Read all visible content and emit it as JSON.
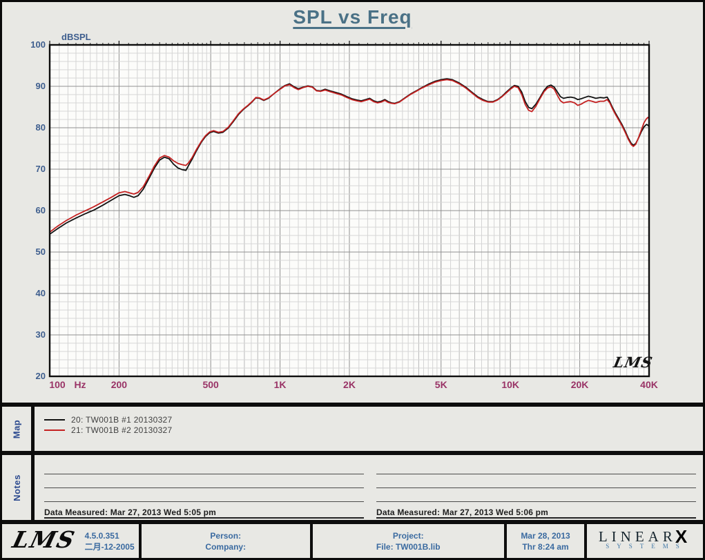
{
  "title": "SPL vs Freq",
  "chart_data": {
    "type": "line",
    "title": "SPL vs Freq",
    "ylabel": "dBSPL",
    "x_unit": "Hz",
    "xscale": "log",
    "xlim": [
      100,
      40000
    ],
    "ylim": [
      20,
      100
    ],
    "grid": true,
    "legend_position": "bottom-map-panel",
    "watermark": "LMS",
    "axis_colors": {
      "x": "#993366",
      "y": "#3e5e8e"
    },
    "yticks": [
      100,
      90,
      80,
      70,
      60,
      50,
      40,
      30,
      20
    ],
    "xticks": [
      {
        "f": 100,
        "label": "100"
      },
      {
        "f": 200,
        "label": "200"
      },
      {
        "f": 500,
        "label": "500"
      },
      {
        "f": 1000,
        "label": "1K"
      },
      {
        "f": 2000,
        "label": "2K"
      },
      {
        "f": 5000,
        "label": "5K"
      },
      {
        "f": 10000,
        "label": "10K"
      },
      {
        "f": 20000,
        "label": "20K"
      },
      {
        "f": 40000,
        "label": "40K"
      }
    ],
    "series": [
      {
        "name": "20: TW001B  #1  20130327",
        "color": "#111111",
        "points": [
          [
            100,
            54.3
          ],
          [
            108,
            55.6
          ],
          [
            118,
            57.0
          ],
          [
            130,
            58.2
          ],
          [
            142,
            59.2
          ],
          [
            155,
            60.1
          ],
          [
            170,
            61.3
          ],
          [
            185,
            62.5
          ],
          [
            200,
            63.6
          ],
          [
            212,
            63.9
          ],
          [
            222,
            63.6
          ],
          [
            232,
            63.2
          ],
          [
            242,
            63.6
          ],
          [
            255,
            65.2
          ],
          [
            270,
            67.8
          ],
          [
            285,
            70.3
          ],
          [
            300,
            72.2
          ],
          [
            315,
            72.9
          ],
          [
            330,
            72.5
          ],
          [
            345,
            71.2
          ],
          [
            360,
            70.3
          ],
          [
            375,
            69.9
          ],
          [
            390,
            69.7
          ],
          [
            400,
            70.8
          ],
          [
            415,
            72.4
          ],
          [
            435,
            74.6
          ],
          [
            455,
            76.5
          ],
          [
            475,
            77.9
          ],
          [
            495,
            78.8
          ],
          [
            515,
            79.1
          ],
          [
            540,
            78.7
          ],
          [
            565,
            78.9
          ],
          [
            595,
            79.9
          ],
          [
            625,
            81.4
          ],
          [
            660,
            83.2
          ],
          [
            695,
            84.5
          ],
          [
            725,
            85.3
          ],
          [
            755,
            86.2
          ],
          [
            785,
            87.2
          ],
          [
            815,
            87.1
          ],
          [
            850,
            86.6
          ],
          [
            890,
            87.1
          ],
          [
            940,
            88.2
          ],
          [
            1000,
            89.4
          ],
          [
            1050,
            90.2
          ],
          [
            1100,
            90.6
          ],
          [
            1150,
            89.9
          ],
          [
            1200,
            89.4
          ],
          [
            1260,
            89.8
          ],
          [
            1320,
            90.1
          ],
          [
            1380,
            89.9
          ],
          [
            1440,
            89.0
          ],
          [
            1500,
            88.9
          ],
          [
            1570,
            89.3
          ],
          [
            1650,
            88.9
          ],
          [
            1750,
            88.5
          ],
          [
            1850,
            88.1
          ],
          [
            1950,
            87.5
          ],
          [
            2050,
            87.0
          ],
          [
            2150,
            86.7
          ],
          [
            2250,
            86.5
          ],
          [
            2350,
            86.8
          ],
          [
            2450,
            87.1
          ],
          [
            2550,
            86.5
          ],
          [
            2650,
            86.2
          ],
          [
            2750,
            86.4
          ],
          [
            2850,
            86.8
          ],
          [
            2950,
            86.3
          ],
          [
            3050,
            86.0
          ],
          [
            3150,
            85.9
          ],
          [
            3300,
            86.3
          ],
          [
            3500,
            87.3
          ],
          [
            3700,
            88.2
          ],
          [
            3900,
            88.9
          ],
          [
            4100,
            89.6
          ],
          [
            4400,
            90.5
          ],
          [
            4700,
            91.2
          ],
          [
            5000,
            91.6
          ],
          [
            5300,
            91.8
          ],
          [
            5600,
            91.6
          ],
          [
            6000,
            90.8
          ],
          [
            6400,
            89.8
          ],
          [
            6800,
            88.6
          ],
          [
            7200,
            87.5
          ],
          [
            7600,
            86.8
          ],
          [
            8000,
            86.3
          ],
          [
            8400,
            86.3
          ],
          [
            8800,
            86.8
          ],
          [
            9200,
            87.6
          ],
          [
            9600,
            88.6
          ],
          [
            10000,
            89.5
          ],
          [
            10400,
            90.2
          ],
          [
            10800,
            90.0
          ],
          [
            11200,
            88.6
          ],
          [
            11600,
            86.3
          ],
          [
            12000,
            84.9
          ],
          [
            12400,
            84.6
          ],
          [
            12900,
            85.7
          ],
          [
            13400,
            87.2
          ],
          [
            14000,
            89.0
          ],
          [
            14500,
            90.0
          ],
          [
            15000,
            90.3
          ],
          [
            15500,
            89.8
          ],
          [
            16000,
            88.6
          ],
          [
            16500,
            87.5
          ],
          [
            17000,
            87.1
          ],
          [
            17600,
            87.3
          ],
          [
            18300,
            87.4
          ],
          [
            19000,
            87.2
          ],
          [
            19600,
            86.8
          ],
          [
            20300,
            87.0
          ],
          [
            21000,
            87.3
          ],
          [
            21800,
            87.6
          ],
          [
            22600,
            87.4
          ],
          [
            23500,
            87.1
          ],
          [
            24500,
            87.3
          ],
          [
            25500,
            87.2
          ],
          [
            26300,
            87.4
          ],
          [
            27000,
            86.3
          ],
          [
            27800,
            84.8
          ],
          [
            28600,
            83.5
          ],
          [
            29500,
            82.2
          ],
          [
            30500,
            80.8
          ],
          [
            31500,
            79.2
          ],
          [
            32500,
            77.5
          ],
          [
            33500,
            76.2
          ],
          [
            34200,
            75.8
          ],
          [
            35000,
            76.2
          ],
          [
            36000,
            77.5
          ],
          [
            37000,
            79.0
          ],
          [
            38000,
            80.2
          ],
          [
            39000,
            80.8
          ],
          [
            39600,
            80.6
          ],
          [
            40000,
            80.2
          ]
        ]
      },
      {
        "name": "21: TW001B  #2  20130327",
        "color": "#c42020",
        "points": [
          [
            100,
            54.8
          ],
          [
            108,
            56.2
          ],
          [
            118,
            57.6
          ],
          [
            130,
            58.9
          ],
          [
            142,
            59.9
          ],
          [
            155,
            60.9
          ],
          [
            170,
            62.1
          ],
          [
            185,
            63.2
          ],
          [
            200,
            64.3
          ],
          [
            212,
            64.6
          ],
          [
            222,
            64.3
          ],
          [
            232,
            64.0
          ],
          [
            242,
            64.4
          ],
          [
            255,
            65.8
          ],
          [
            270,
            68.3
          ],
          [
            285,
            70.8
          ],
          [
            300,
            72.7
          ],
          [
            315,
            73.3
          ],
          [
            330,
            72.9
          ],
          [
            345,
            72.0
          ],
          [
            360,
            71.4
          ],
          [
            375,
            71.1
          ],
          [
            390,
            70.9
          ],
          [
            400,
            71.5
          ],
          [
            415,
            72.8
          ],
          [
            435,
            74.9
          ],
          [
            455,
            76.7
          ],
          [
            475,
            78.1
          ],
          [
            495,
            79.0
          ],
          [
            515,
            79.3
          ],
          [
            540,
            78.9
          ],
          [
            565,
            79.1
          ],
          [
            595,
            80.1
          ],
          [
            625,
            81.6
          ],
          [
            660,
            83.4
          ],
          [
            695,
            84.6
          ],
          [
            725,
            85.4
          ],
          [
            755,
            86.3
          ],
          [
            785,
            87.3
          ],
          [
            815,
            87.2
          ],
          [
            850,
            86.7
          ],
          [
            890,
            87.2
          ],
          [
            940,
            88.2
          ],
          [
            1000,
            89.3
          ],
          [
            1050,
            90.1
          ],
          [
            1100,
            90.4
          ],
          [
            1150,
            89.7
          ],
          [
            1200,
            89.2
          ],
          [
            1260,
            89.7
          ],
          [
            1320,
            90.0
          ],
          [
            1380,
            89.8
          ],
          [
            1440,
            88.9
          ],
          [
            1500,
            88.8
          ],
          [
            1570,
            89.1
          ],
          [
            1650,
            88.7
          ],
          [
            1750,
            88.3
          ],
          [
            1850,
            87.9
          ],
          [
            1950,
            87.3
          ],
          [
            2050,
            86.8
          ],
          [
            2150,
            86.5
          ],
          [
            2250,
            86.3
          ],
          [
            2350,
            86.6
          ],
          [
            2450,
            86.9
          ],
          [
            2550,
            86.3
          ],
          [
            2650,
            86.0
          ],
          [
            2750,
            86.2
          ],
          [
            2850,
            86.6
          ],
          [
            2950,
            86.1
          ],
          [
            3050,
            85.9
          ],
          [
            3150,
            85.8
          ],
          [
            3300,
            86.2
          ],
          [
            3500,
            87.2
          ],
          [
            3700,
            88.1
          ],
          [
            3900,
            88.8
          ],
          [
            4100,
            89.5
          ],
          [
            4400,
            90.3
          ],
          [
            4700,
            91.0
          ],
          [
            5000,
            91.4
          ],
          [
            5300,
            91.6
          ],
          [
            5600,
            91.4
          ],
          [
            6000,
            90.6
          ],
          [
            6400,
            89.6
          ],
          [
            6800,
            88.4
          ],
          [
            7200,
            87.3
          ],
          [
            7600,
            86.6
          ],
          [
            8000,
            86.2
          ],
          [
            8400,
            86.2
          ],
          [
            8800,
            86.7
          ],
          [
            9200,
            87.5
          ],
          [
            9600,
            88.4
          ],
          [
            10000,
            89.3
          ],
          [
            10400,
            90.0
          ],
          [
            10800,
            89.7
          ],
          [
            11200,
            88.0
          ],
          [
            11600,
            85.6
          ],
          [
            12000,
            84.2
          ],
          [
            12400,
            83.9
          ],
          [
            12900,
            85.2
          ],
          [
            13400,
            86.9
          ],
          [
            14000,
            88.7
          ],
          [
            14500,
            89.6
          ],
          [
            15000,
            89.9
          ],
          [
            15500,
            89.3
          ],
          [
            16000,
            87.8
          ],
          [
            16500,
            86.5
          ],
          [
            17000,
            86.0
          ],
          [
            17600,
            86.2
          ],
          [
            18300,
            86.3
          ],
          [
            19000,
            86.0
          ],
          [
            19600,
            85.4
          ],
          [
            20300,
            85.7
          ],
          [
            21000,
            86.2
          ],
          [
            21800,
            86.6
          ],
          [
            22600,
            86.4
          ],
          [
            23500,
            86.1
          ],
          [
            24500,
            86.4
          ],
          [
            25500,
            86.4
          ],
          [
            26300,
            86.8
          ],
          [
            27000,
            86.0
          ],
          [
            27800,
            84.5
          ],
          [
            28600,
            83.2
          ],
          [
            29500,
            81.9
          ],
          [
            30500,
            80.5
          ],
          [
            31500,
            78.9
          ],
          [
            32500,
            77.2
          ],
          [
            33500,
            75.9
          ],
          [
            34200,
            75.5
          ],
          [
            35000,
            76.0
          ],
          [
            36000,
            77.6
          ],
          [
            37000,
            79.4
          ],
          [
            38000,
            81.2
          ],
          [
            39000,
            82.2
          ],
          [
            39600,
            82.5
          ],
          [
            40000,
            82.2
          ]
        ]
      }
    ]
  },
  "map": {
    "label": "Map",
    "entries": [
      {
        "color": "#111111",
        "label": "20: TW001B  #1  20130327"
      },
      {
        "color": "#c42020",
        "label": "21: TW001B  #2  20130327"
      }
    ]
  },
  "notes": {
    "label": "Notes",
    "columns": [
      {
        "measured": "Data Measured: Mar 27, 2013  Wed  5:05 pm"
      },
      {
        "measured": "Data Measured: Mar 27, 2013  Wed  5:06 pm"
      }
    ]
  },
  "footer": {
    "lms_logo": "LMS",
    "version": "4.5.0.351",
    "version_date": "二月-12-2005",
    "person_label": "Person:",
    "company_label": "Company:",
    "project_label": "Project:",
    "file_label": "File: TW001B.lib",
    "date": "Mar 28, 2013",
    "time": "Thr  8:24 am",
    "brand": {
      "linear": "LINEAR",
      "x": "X",
      "systems": "SYSTEMS"
    }
  }
}
